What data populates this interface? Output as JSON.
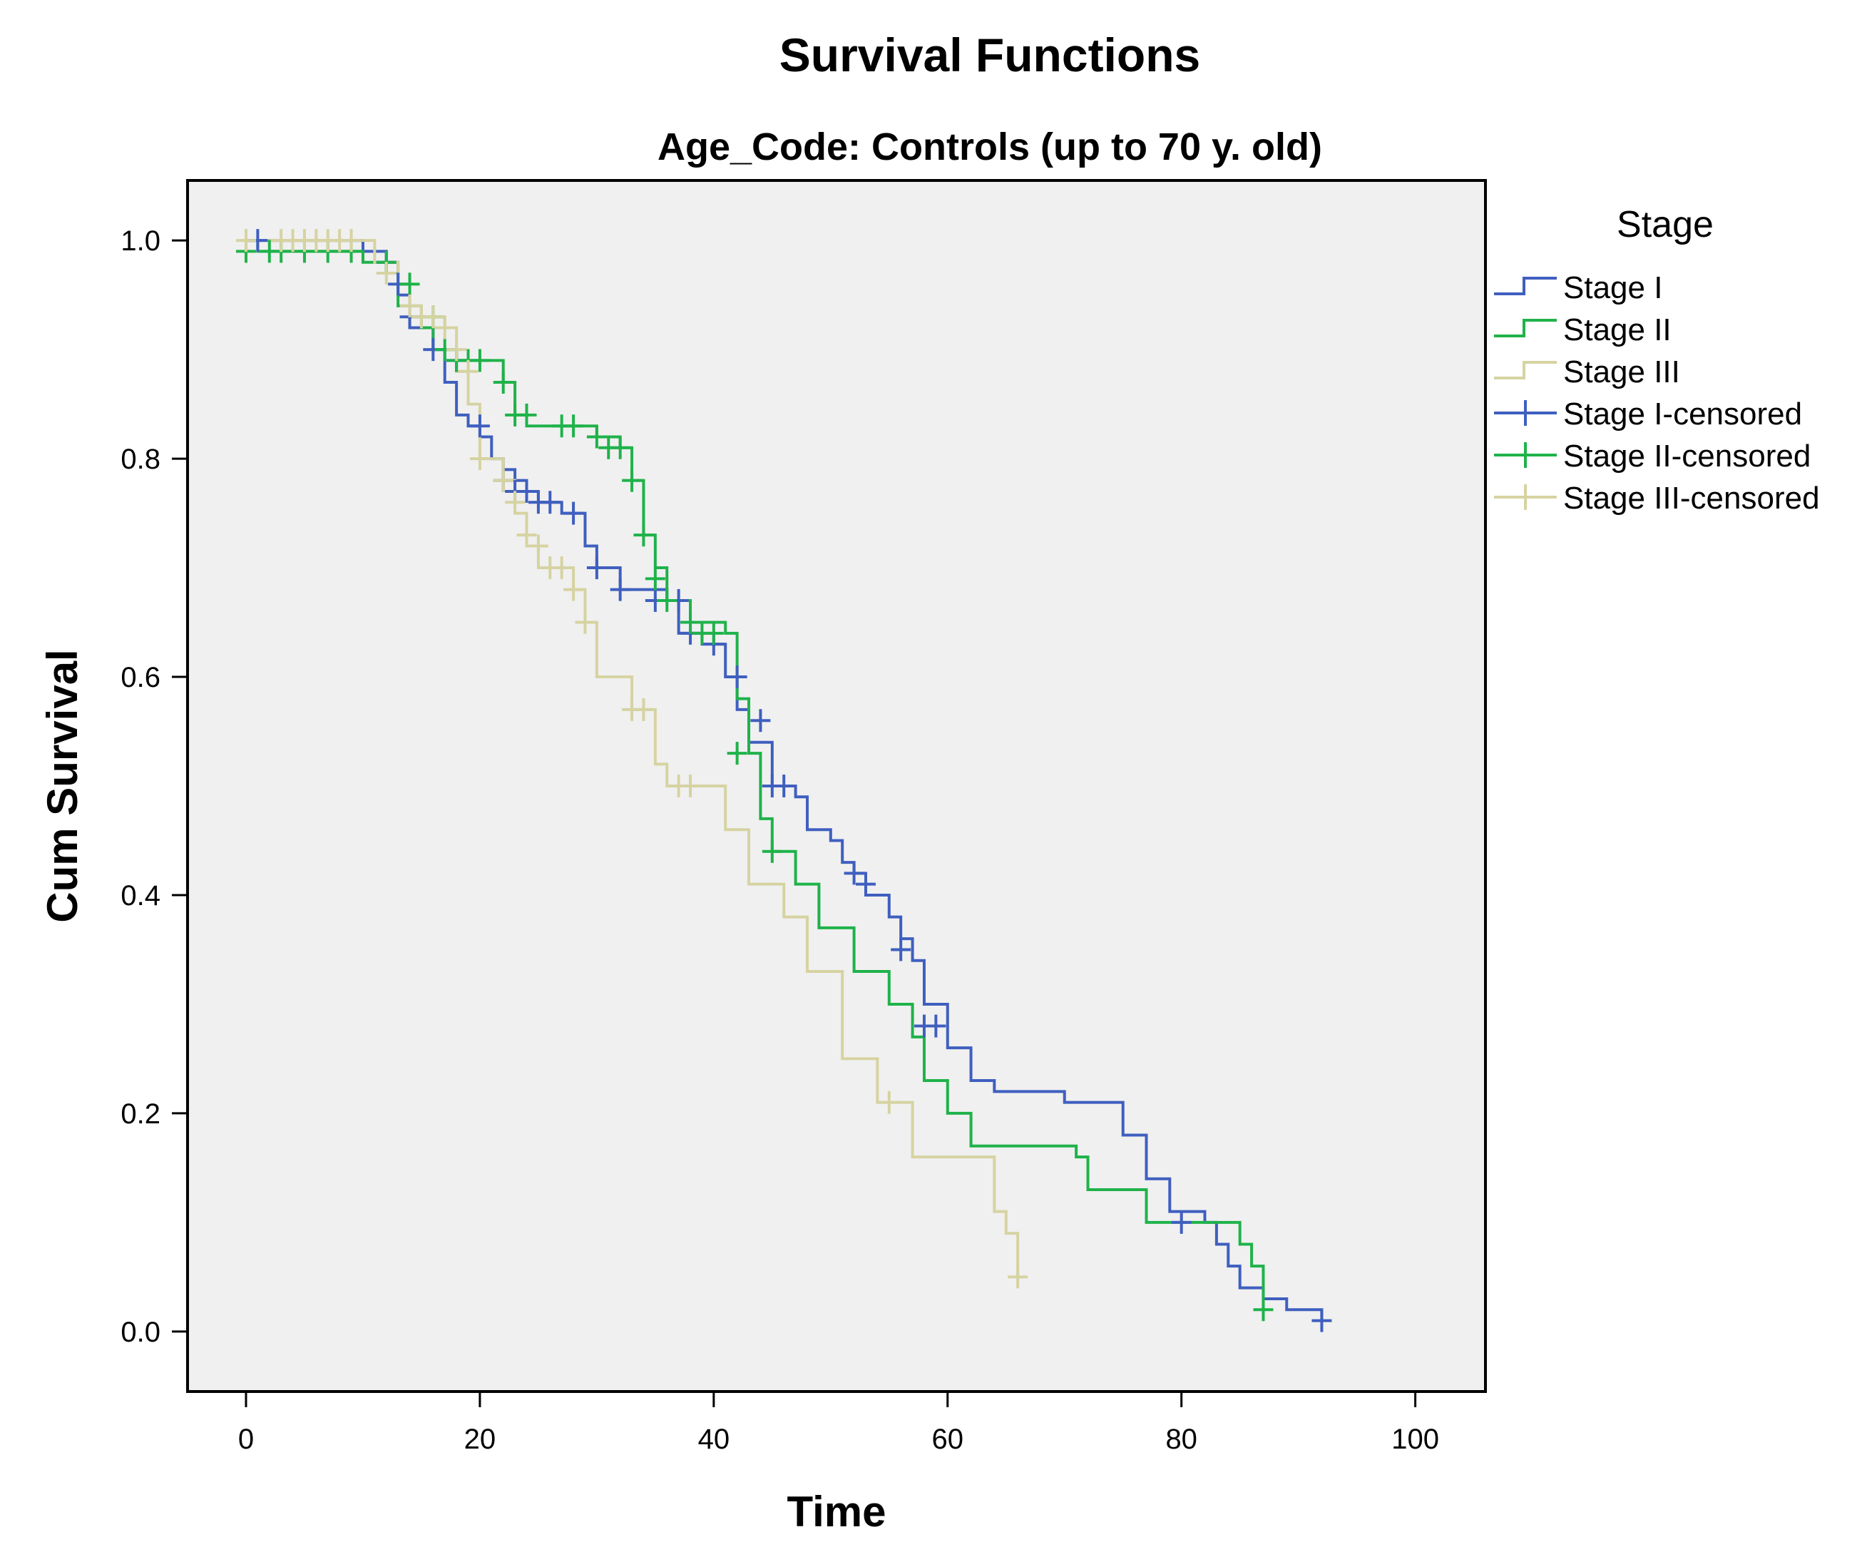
{
  "chart_data": {
    "type": "line",
    "title": "Survival Functions",
    "subtitle": "Age_Code: Controls (up to 70 y. old)",
    "xlabel": "Time",
    "ylabel": "Cum Survival",
    "xlim": [
      -5,
      106
    ],
    "ylim": [
      -0.055,
      1.055
    ],
    "xticks": [
      0,
      20,
      40,
      60,
      80,
      100
    ],
    "xtick_labels": [
      "0",
      "20",
      "40",
      "60",
      "80",
      "100"
    ],
    "yticks": [
      0.0,
      0.2,
      0.4,
      0.6,
      0.8,
      1.0
    ],
    "ytick_labels": [
      "0.0",
      "0.2",
      "0.4",
      "0.6",
      "0.8",
      "1.0"
    ],
    "grid": false,
    "step": true,
    "plot_background": "#f0f0f0",
    "legend_title": "Stage",
    "legend_position": "right",
    "legend": [
      {
        "label": "Stage I",
        "color": "#3f5fbf",
        "marker": "step"
      },
      {
        "label": "Stage II",
        "color": "#1fb24a",
        "marker": "step"
      },
      {
        "label": "Stage III",
        "color": "#d6d3a2",
        "marker": "step"
      },
      {
        "label": "Stage I-censored",
        "color": "#3f5fbf",
        "marker": "plus"
      },
      {
        "label": "Stage II-censored",
        "color": "#1fb24a",
        "marker": "plus"
      },
      {
        "label": "Stage III-censored",
        "color": "#d6d3a2",
        "marker": "plus"
      }
    ],
    "series": [
      {
        "name": "Stage I",
        "color": "#3f5fbf",
        "x": [
          0,
          10,
          12,
          13,
          14,
          16,
          17,
          18,
          19,
          20,
          21,
          22,
          23,
          24,
          25,
          27,
          29,
          30,
          32,
          36,
          37,
          39,
          41,
          42,
          43,
          45,
          47,
          48,
          50,
          51,
          52,
          53,
          55,
          56,
          57,
          58,
          60,
          62,
          64,
          70,
          75,
          77,
          79,
          82,
          83,
          84,
          85,
          87,
          89,
          92
        ],
        "y": [
          1.0,
          0.99,
          0.98,
          0.95,
          0.92,
          0.9,
          0.87,
          0.84,
          0.83,
          0.82,
          0.8,
          0.79,
          0.78,
          0.77,
          0.76,
          0.75,
          0.72,
          0.7,
          0.68,
          0.67,
          0.64,
          0.63,
          0.6,
          0.57,
          0.54,
          0.5,
          0.49,
          0.46,
          0.45,
          0.43,
          0.42,
          0.4,
          0.38,
          0.36,
          0.34,
          0.3,
          0.26,
          0.23,
          0.22,
          0.21,
          0.18,
          0.14,
          0.11,
          0.1,
          0.08,
          0.06,
          0.04,
          0.03,
          0.02,
          0.01
        ],
        "censored_x": [
          1,
          12,
          13,
          14,
          16,
          18,
          20,
          22,
          23,
          24,
          25,
          26,
          28,
          30,
          32,
          35,
          37,
          38,
          40,
          42,
          44,
          45,
          46,
          52,
          53,
          56,
          58,
          59,
          80,
          92
        ],
        "censored_y": [
          1.0,
          0.98,
          0.96,
          0.93,
          0.9,
          0.89,
          0.83,
          0.78,
          0.77,
          0.77,
          0.76,
          0.76,
          0.75,
          0.7,
          0.68,
          0.67,
          0.67,
          0.64,
          0.63,
          0.6,
          0.56,
          0.5,
          0.5,
          0.42,
          0.41,
          0.35,
          0.28,
          0.28,
          0.1,
          0.01
        ]
      },
      {
        "name": "Stage II",
        "color": "#1fb24a",
        "x": [
          0,
          1,
          10,
          12,
          13,
          15,
          16,
          18,
          20,
          22,
          23,
          24,
          30,
          32,
          33,
          34,
          35,
          36,
          38,
          41,
          42,
          43,
          44,
          45,
          47,
          49,
          52,
          55,
          57,
          58,
          60,
          62,
          71,
          72,
          77,
          85,
          86,
          87
        ],
        "y": [
          1.0,
          0.99,
          0.98,
          0.97,
          0.94,
          0.92,
          0.9,
          0.89,
          0.89,
          0.87,
          0.84,
          0.83,
          0.82,
          0.81,
          0.78,
          0.73,
          0.7,
          0.67,
          0.65,
          0.64,
          0.58,
          0.53,
          0.47,
          0.44,
          0.41,
          0.37,
          0.33,
          0.3,
          0.27,
          0.23,
          0.2,
          0.17,
          0.16,
          0.13,
          0.1,
          0.08,
          0.06,
          0.02
        ],
        "censored_x": [
          0,
          2,
          3,
          5,
          7,
          9,
          12,
          14,
          16,
          17,
          18,
          19,
          20,
          22,
          23,
          24,
          27,
          28,
          30,
          31,
          32,
          33,
          34,
          35,
          36,
          38,
          39,
          40,
          42,
          45,
          87
        ],
        "censored_y": [
          0.99,
          0.99,
          0.99,
          0.99,
          0.99,
          0.99,
          0.98,
          0.96,
          0.93,
          0.9,
          0.89,
          0.89,
          0.89,
          0.87,
          0.84,
          0.84,
          0.83,
          0.83,
          0.82,
          0.81,
          0.81,
          0.78,
          0.73,
          0.69,
          0.67,
          0.65,
          0.64,
          0.64,
          0.53,
          0.44,
          0.02
        ]
      },
      {
        "name": "Stage III",
        "color": "#d6d3a2",
        "x": [
          0,
          11,
          13,
          14,
          15,
          17,
          18,
          19,
          20,
          22,
          23,
          24,
          25,
          28,
          29,
          30,
          33,
          35,
          36,
          41,
          43,
          46,
          48,
          51,
          54,
          57,
          64,
          65,
          66
        ],
        "y": [
          1.0,
          0.98,
          0.96,
          0.94,
          0.93,
          0.92,
          0.88,
          0.85,
          0.8,
          0.78,
          0.75,
          0.72,
          0.7,
          0.68,
          0.65,
          0.6,
          0.57,
          0.52,
          0.5,
          0.46,
          0.41,
          0.38,
          0.33,
          0.25,
          0.21,
          0.16,
          0.11,
          0.09,
          0.05
        ],
        "censored_x": [
          0,
          3,
          4,
          5,
          6,
          7,
          8,
          9,
          12,
          14,
          15,
          16,
          17,
          18,
          19,
          20,
          22,
          23,
          24,
          25,
          26,
          27,
          28,
          29,
          33,
          34,
          37,
          38,
          55,
          66
        ],
        "censored_y": [
          1.0,
          1.0,
          1.0,
          1.0,
          1.0,
          1.0,
          1.0,
          1.0,
          0.97,
          0.94,
          0.93,
          0.93,
          0.92,
          0.9,
          0.88,
          0.8,
          0.78,
          0.76,
          0.73,
          0.72,
          0.7,
          0.7,
          0.68,
          0.65,
          0.57,
          0.57,
          0.5,
          0.5,
          0.21,
          0.05
        ]
      }
    ]
  }
}
